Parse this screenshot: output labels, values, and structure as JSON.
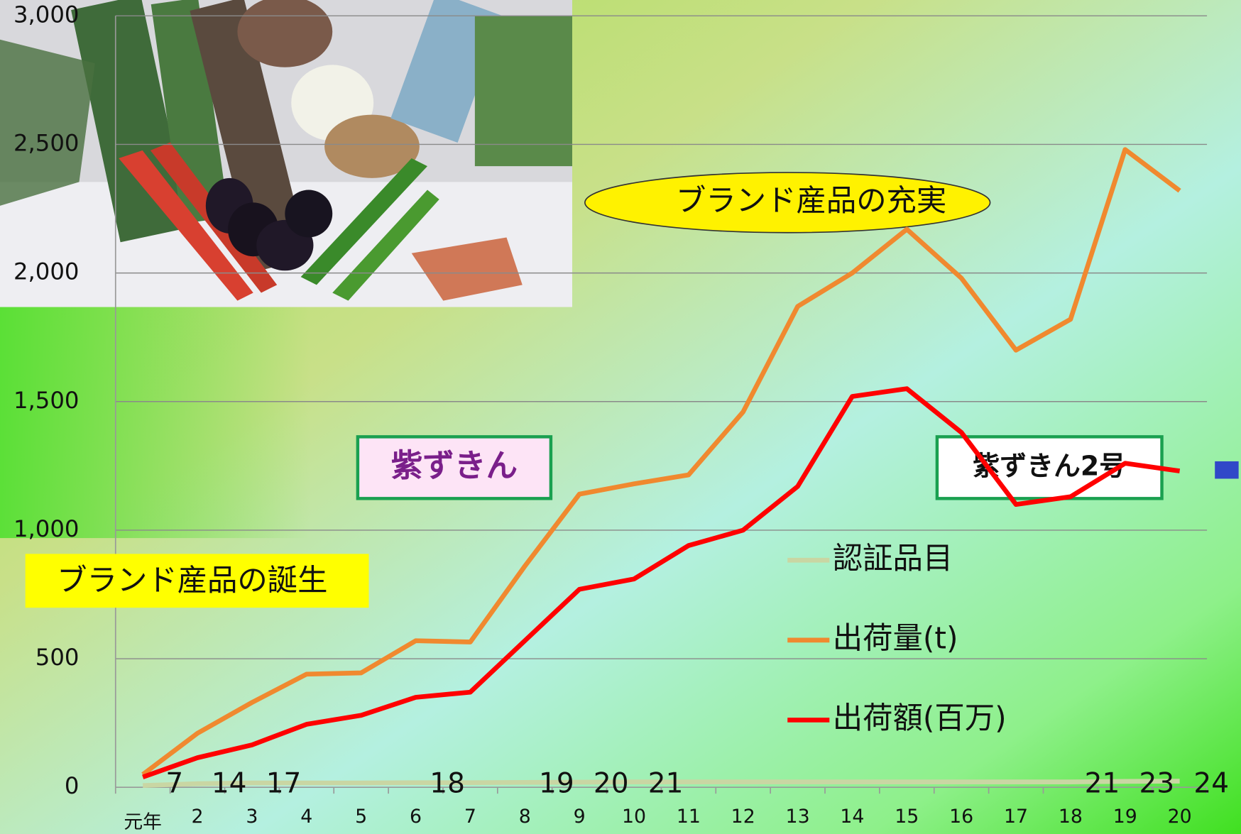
{
  "chart_data": {
    "type": "line",
    "categories": [
      "元年",
      "2",
      "3",
      "4",
      "5",
      "6",
      "7",
      "8",
      "9",
      "10",
      "11",
      "12",
      "13",
      "14",
      "15",
      "16",
      "17",
      "18",
      "19",
      "20"
    ],
    "series": [
      {
        "name": "認証品目",
        "color": "#c9d6a3",
        "values": [
          7,
          14,
          17,
          17,
          17,
          18,
          18,
          19,
          20,
          21,
          21,
          21,
          21,
          21,
          21,
          21,
          21,
          21,
          23,
          24
        ],
        "value_labels": [
          "7",
          "14",
          "17",
          null,
          null,
          "18",
          null,
          "19",
          "20",
          "21",
          null,
          null,
          null,
          null,
          null,
          null,
          null,
          "21",
          "23",
          "24"
        ]
      },
      {
        "name": "出荷量(t)",
        "color": "#f0892f",
        "values": [
          50,
          210,
          330,
          440,
          445,
          570,
          565,
          860,
          1140,
          1180,
          1215,
          1460,
          1870,
          2000,
          2170,
          1980,
          1700,
          1820,
          2480,
          2320
        ]
      },
      {
        "name": "出荷額(百万)",
        "color": "#ff0000",
        "values": [
          40,
          115,
          165,
          245,
          280,
          350,
          370,
          570,
          770,
          810,
          940,
          1000,
          1170,
          1520,
          1550,
          1380,
          1100,
          1130,
          1260,
          1230
        ]
      }
    ],
    "ylim": [
      0,
      3000
    ],
    "yticks": [
      0,
      500,
      {
        "value": 1000,
        "label": "1,000"
      },
      {
        "value": 1500,
        "label": "1,500"
      },
      {
        "value": 2000,
        "label": "2,000"
      },
      {
        "value": 2500,
        "label": "2,500"
      },
      {
        "value": 3000,
        "label": "3,000"
      }
    ],
    "grid": true,
    "annotations": [
      "ブランド産品の充実",
      "紫ずきん",
      "紫ずきん2号",
      "ブランド産品の誕生"
    ]
  }
}
